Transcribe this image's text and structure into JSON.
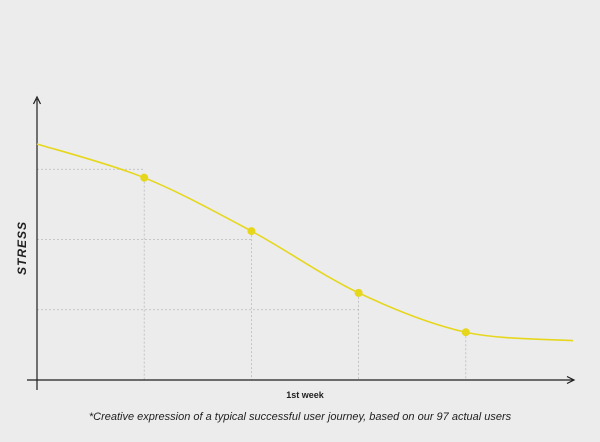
{
  "chart_data": {
    "type": "line",
    "title": "",
    "ylabel": "STRESS",
    "xlabel": "",
    "x_tick_labels": [
      "",
      "1st week",
      "",
      ""
    ],
    "x": [
      0,
      1,
      2,
      3,
      4,
      5
    ],
    "xlim": [
      0,
      5
    ],
    "ylim": [
      0,
      100
    ],
    "grid": false,
    "series": [
      {
        "values": [
          84,
          72,
          53,
          31,
          17,
          14
        ],
        "color": "#e6d71c",
        "marked_points": [
          1,
          2,
          3,
          4
        ]
      }
    ],
    "reference_levels": [
      75,
      50,
      25
    ],
    "annotation": "*Creative expression of a typical successful user journey, based on our 97 actual users"
  },
  "colors": {
    "background": "#ececec",
    "line": "#e6d71c",
    "axis": "#1e1e1e",
    "guide": "#b9b9b9"
  }
}
